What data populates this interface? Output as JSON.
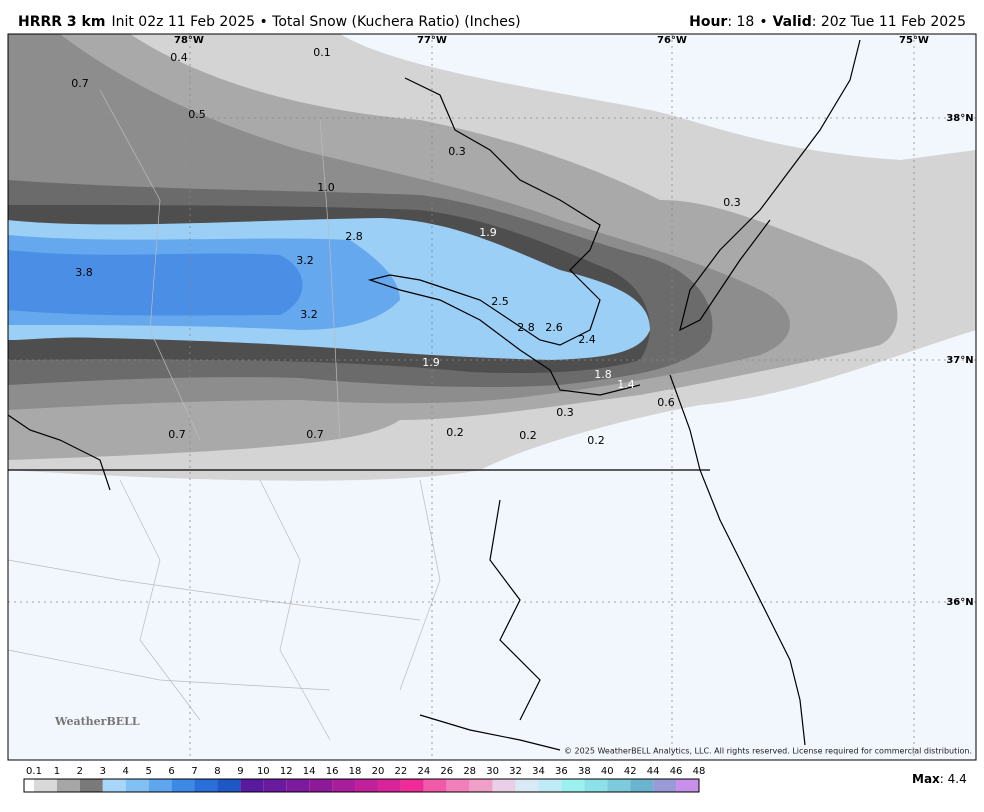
{
  "header": {
    "model": "HRRR 3 km",
    "description": "Init 02z 11 Feb 2025 • Total Snow (Kuchera Ratio) (Inches)",
    "hour_label": "Hour",
    "hour_value": ": 18",
    "separator": "•",
    "valid_label": "Valid",
    "valid_value": ": 20z Tue 11 Feb 2025"
  },
  "map": {
    "longitudes": [
      "78°W",
      "77°W",
      "76°W",
      "75°W"
    ],
    "latitudes": [
      "38°N",
      "37°N",
      "36°N"
    ],
    "labels": [
      "0.4",
      "0.1",
      "0.7",
      "0.5",
      "0.3",
      "1.0",
      "0.3",
      "2.8",
      "1.9",
      "3.8",
      "3.2",
      "2.5",
      "3.2",
      "2.8",
      "2.6",
      "2.4",
      "1.9",
      "1.8",
      "1.4",
      "0.6",
      "0.3",
      "0.7",
      "0.7",
      "0.2",
      "0.2",
      "0.2"
    ],
    "logo": "WeatherBELL",
    "copyright": "© 2025 WeatherBELL Analytics, LLC. All rights reserved. License required for commercial distribution."
  },
  "legend": {
    "ticks": [
      "0.1",
      "1",
      "2",
      "3",
      "4",
      "5",
      "6",
      "7",
      "8",
      "9",
      "10",
      "12",
      "14",
      "16",
      "18",
      "20",
      "22",
      "24",
      "26",
      "28",
      "30",
      "32",
      "34",
      "36",
      "38",
      "40",
      "42",
      "44",
      "46",
      "48"
    ],
    "colors": [
      "#ffffff",
      "#d9d9d9",
      "#a6a6a6",
      "#7a7a7a",
      "#a8d6f8",
      "#82bff3",
      "#5ea6ee",
      "#3d8ae6",
      "#2a6fd9",
      "#1f57c6",
      "#5a1aa0",
      "#6a1a9e",
      "#7b1a9c",
      "#8e1a9a",
      "#a81d9a",
      "#c0209a",
      "#d8239a",
      "#ee2b96",
      "#f05aa8",
      "#f07fba",
      "#f0a0c8",
      "#ead0e6",
      "#d8eaf6",
      "#bfeaf6",
      "#9df0f0",
      "#8ce0e8",
      "#7ccadc",
      "#6ab4d0",
      "#9a9ad8",
      "#c890e8"
    ],
    "max_label": "Max",
    "max_value": ": 4.4"
  }
}
